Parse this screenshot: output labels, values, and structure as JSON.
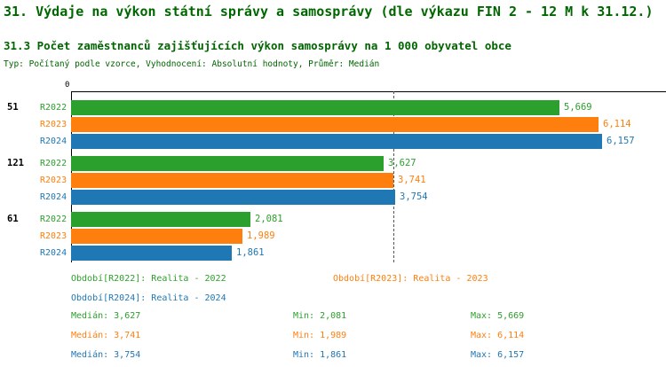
{
  "chart_data": {
    "type": "bar",
    "orientation": "horizontal",
    "title": "31. Výdaje na výkon státní správy a samosprávy (dle výkazu FIN 2 - 12 M k 31.12.)",
    "subtitle": "31.3 Počet zaměstnanců zajišťujících výkon samosprávy na 1 000 obyvatel obce",
    "meta": "Typ: Počítaný podle vzorce, Vyhodnocení: Absolutní hodnoty, Průměr: Medián",
    "axis": {
      "origin_label": "0"
    },
    "xlim": [
      0,
      6900
    ],
    "grid": false,
    "median_line_value": 3741,
    "categories": [
      "51",
      "121",
      "61"
    ],
    "series": [
      {
        "name": "R2022",
        "color": "#2ca02c",
        "values": [
          5669,
          3627,
          2081
        ],
        "displays": [
          "5,669",
          "3,627",
          "2,081"
        ],
        "legend": "Období[R2022]: Realita - 2022",
        "stat_median": "Medián: 3,627",
        "stat_min": "Min: 2,081",
        "stat_max": "Max: 5,669"
      },
      {
        "name": "R2023",
        "color": "#ff7f0e",
        "values": [
          6114,
          3741,
          1989
        ],
        "displays": [
          "6,114",
          "3,741",
          "1,989"
        ],
        "legend": "Období[R2023]: Realita - 2023",
        "stat_median": "Medián: 3,741",
        "stat_min": "Min: 1,989",
        "stat_max": "Max: 6,114"
      },
      {
        "name": "R2024",
        "color": "#1f77b4",
        "values": [
          6157,
          3754,
          1861
        ],
        "displays": [
          "6,157",
          "3,754",
          "1,861"
        ],
        "legend": "Období[R2024]: Realita - 2024",
        "stat_median": "Medián: 3,754",
        "stat_min": "Min: 1,861",
        "stat_max": "Max: 6,157"
      }
    ]
  },
  "colors": {
    "title": "#006600",
    "axis": "#000000",
    "median_line": "#555555"
  }
}
